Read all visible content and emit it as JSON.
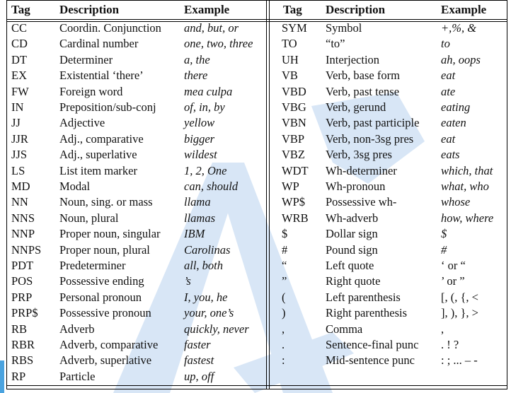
{
  "headers": {
    "tag": "Tag",
    "description": "Description",
    "example": "Example"
  },
  "left_rows": [
    {
      "tag": "CC",
      "desc": "Coordin. Conjunction",
      "ex": "and, but, or"
    },
    {
      "tag": "CD",
      "desc": "Cardinal number",
      "ex": "one, two, three"
    },
    {
      "tag": "DT",
      "desc": "Determiner",
      "ex": "a, the"
    },
    {
      "tag": "EX",
      "desc": "Existential ‘there’",
      "ex": "there"
    },
    {
      "tag": "FW",
      "desc": "Foreign word",
      "ex": "mea culpa"
    },
    {
      "tag": "IN",
      "desc": "Preposition/sub-conj",
      "ex": "of, in, by"
    },
    {
      "tag": "JJ",
      "desc": "Adjective",
      "ex": "yellow"
    },
    {
      "tag": "JJR",
      "desc": "Adj., comparative",
      "ex": "bigger"
    },
    {
      "tag": "JJS",
      "desc": "Adj., superlative",
      "ex": "wildest"
    },
    {
      "tag": "LS",
      "desc": "List item marker",
      "ex": "1, 2, One"
    },
    {
      "tag": "MD",
      "desc": "Modal",
      "ex": "can, should"
    },
    {
      "tag": "NN",
      "desc": "Noun, sing. or mass",
      "ex": "llama"
    },
    {
      "tag": "NNS",
      "desc": "Noun, plural",
      "ex": "llamas"
    },
    {
      "tag": "NNP",
      "desc": "Proper noun, singular",
      "ex": "IBM"
    },
    {
      "tag": "NNPS",
      "desc": "Proper noun, plural",
      "ex": "Carolinas"
    },
    {
      "tag": "PDT",
      "desc": "Predeterminer",
      "ex": "all, both"
    },
    {
      "tag": "POS",
      "desc": "Possessive ending",
      "ex": "’s"
    },
    {
      "tag": "PRP",
      "desc": "Personal pronoun",
      "ex": "I, you, he"
    },
    {
      "tag": "PRP$",
      "desc": "Possessive pronoun",
      "ex": "your, one’s"
    },
    {
      "tag": "RB",
      "desc": "Adverb",
      "ex": "quickly, never"
    },
    {
      "tag": "RBR",
      "desc": "Adverb, comparative",
      "ex": "faster"
    },
    {
      "tag": "RBS",
      "desc": "Adverb, superlative",
      "ex": "fastest"
    },
    {
      "tag": "RP",
      "desc": "Particle",
      "ex": "up, off"
    }
  ],
  "right_rows": [
    {
      "tag": "SYM",
      "desc": "Symbol",
      "ex": "+,%, &"
    },
    {
      "tag": "TO",
      "desc": "“to”",
      "ex": "to"
    },
    {
      "tag": "UH",
      "desc": "Interjection",
      "ex": "ah, oops"
    },
    {
      "tag": "VB",
      "desc": "Verb, base form",
      "ex": "eat"
    },
    {
      "tag": "VBD",
      "desc": "Verb, past tense",
      "ex": "ate"
    },
    {
      "tag": "VBG",
      "desc": "Verb, gerund",
      "ex": "eating"
    },
    {
      "tag": "VBN",
      "desc": "Verb, past participle",
      "ex": "eaten"
    },
    {
      "tag": "VBP",
      "desc": "Verb, non-3sg pres",
      "ex": "eat"
    },
    {
      "tag": "VBZ",
      "desc": "Verb, 3sg pres",
      "ex": "eats"
    },
    {
      "tag": "WDT",
      "desc": "Wh-determiner",
      "ex": "which, that"
    },
    {
      "tag": "WP",
      "desc": "Wh-pronoun",
      "ex": "what, who"
    },
    {
      "tag": "WP$",
      "desc": "Possessive wh-",
      "ex": "whose"
    },
    {
      "tag": "WRB",
      "desc": "Wh-adverb",
      "ex": "how, where"
    },
    {
      "tag": "$",
      "desc": "Dollar sign",
      "ex": "$"
    },
    {
      "tag": "#",
      "desc": "Pound sign",
      "ex": "#"
    },
    {
      "tag": "“",
      "desc": "Left quote",
      "ex": "‘ or “",
      "plain": true
    },
    {
      "tag": "”",
      "desc": "Right quote",
      "ex": "’ or ”",
      "plain": true
    },
    {
      "tag": "(",
      "desc": "Left parenthesis",
      "ex": "[, (, {, <",
      "plain": true
    },
    {
      "tag": ")",
      "desc": "Right parenthesis",
      "ex": "], ), }, >",
      "plain": true
    },
    {
      "tag": ",",
      "desc": "Comma",
      "ex": ",",
      "plain": true
    },
    {
      "tag": ".",
      "desc": "Sentence-final punc",
      "ex": ". ! ?",
      "plain": true
    },
    {
      "tag": ":",
      "desc": "Mid-sentence punc",
      "ex": ": ; ... – -",
      "plain": true
    }
  ],
  "colors": {
    "watermark": "#d8e6f6",
    "edge_accent": "#4aa3df"
  }
}
